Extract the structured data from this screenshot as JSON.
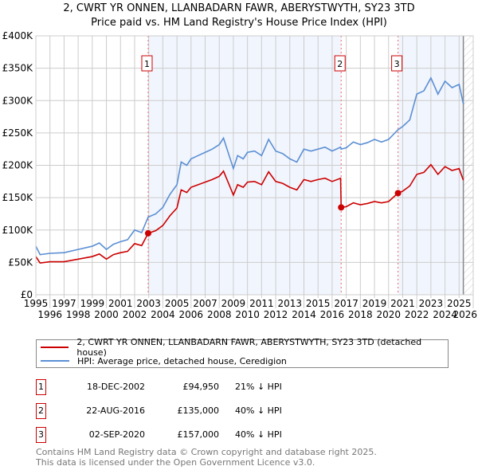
{
  "chart_data": {
    "type": "line",
    "title": "2, CWRT YR ONNEN, LLANBADARN FAWR, ABERYSTWYTH, SY23 3TD",
    "subtitle": "Price paid vs. HM Land Registry's House Price Index (HPI)",
    "xlim": [
      1995,
      2026
    ],
    "ylim": [
      0,
      400000
    ],
    "x_ticks": [
      "1995",
      "1996",
      "1997",
      "1998",
      "1999",
      "2000",
      "2001",
      "2002",
      "2003",
      "2004",
      "2005",
      "2006",
      "2007",
      "2008",
      "2009",
      "2010",
      "2011",
      "2012",
      "2013",
      "2014",
      "2015",
      "2016",
      "2017",
      "2018",
      "2019",
      "2020",
      "2021",
      "2022",
      "2023",
      "2024",
      "2025",
      "2026"
    ],
    "y_ticks": [
      {
        "v": 0,
        "label": "£0"
      },
      {
        "v": 50000,
        "label": "£50K"
      },
      {
        "v": 100000,
        "label": "£100K"
      },
      {
        "v": 150000,
        "label": "£150K"
      },
      {
        "v": 200000,
        "label": "£200K"
      },
      {
        "v": 250000,
        "label": "£250K"
      },
      {
        "v": 300000,
        "label": "£300K"
      },
      {
        "v": 350000,
        "label": "£350K"
      },
      {
        "v": 400000,
        "label": "£400K"
      }
    ],
    "grid": true,
    "x": [
      1995,
      1995.3,
      1996,
      1997,
      1998,
      1999,
      1999.5,
      2000,
      2000.5,
      2001,
      2001.5,
      2002,
      2002.5,
      2002.96,
      2003.5,
      2004,
      2004.5,
      2005,
      2005.3,
      2005.7,
      2006,
      2006.5,
      2007,
      2007.5,
      2008,
      2008.3,
      2008.7,
      2009,
      2009.3,
      2009.7,
      2010,
      2010.5,
      2011,
      2011.5,
      2012,
      2012.5,
      2013,
      2013.5,
      2014,
      2014.5,
      2015,
      2015.5,
      2016,
      2016.6,
      2016.64,
      2017,
      2017.5,
      2018,
      2018.5,
      2019,
      2019.5,
      2020,
      2020.67,
      2021,
      2021.5,
      2022,
      2022.5,
      2023,
      2023.5,
      2024,
      2024.5,
      2025,
      2025.3
    ],
    "series": [
      {
        "name": "2, CWRT YR ONNEN, LLANBADARN FAWR, ABERYSTWYTH, SY23 3TD (detached house)",
        "color": "#cc0000",
        "values": [
          59000,
          49000,
          51000,
          51000,
          55000,
          59000,
          63000,
          55000,
          62000,
          65000,
          67000,
          79000,
          76000,
          94950,
          99000,
          107000,
          122000,
          134000,
          162000,
          158000,
          166000,
          170000,
          174000,
          178000,
          183000,
          191000,
          170000,
          154000,
          170000,
          166000,
          174000,
          175000,
          170000,
          190000,
          175000,
          172000,
          166000,
          162000,
          178000,
          175000,
          178000,
          180000,
          175000,
          180000,
          135000,
          136000,
          142000,
          139000,
          141000,
          144000,
          142000,
          144000,
          157000,
          160000,
          168000,
          186000,
          189000,
          201000,
          186000,
          198000,
          192000,
          195000,
          177000
        ]
      },
      {
        "name": "HPI: Average price, detached house, Ceredigion",
        "color": "#5b8fd4",
        "values": [
          75000,
          62000,
          64000,
          65000,
          70000,
          75000,
          80000,
          70000,
          78000,
          82000,
          85000,
          100000,
          96000,
          120000,
          125000,
          135000,
          155000,
          170000,
          205000,
          200000,
          210000,
          215000,
          220000,
          225000,
          232000,
          242000,
          215000,
          195000,
          215000,
          210000,
          220000,
          222000,
          215000,
          240000,
          222000,
          218000,
          210000,
          205000,
          225000,
          222000,
          225000,
          228000,
          222000,
          228000,
          225000,
          227000,
          236000,
          232000,
          235000,
          240000,
          236000,
          240000,
          255000,
          260000,
          270000,
          310000,
          315000,
          335000,
          310000,
          330000,
          320000,
          325000,
          295000
        ]
      }
    ],
    "sales": [
      {
        "label": "1",
        "date": "18-DEC-2002",
        "x": 2002.96,
        "price_value": 94950,
        "price": "£94,950",
        "hpi": "21% ↓ HPI"
      },
      {
        "label": "2",
        "date": "22-AUG-2016",
        "x": 2016.64,
        "price_value": 135000,
        "price": "£135,000",
        "hpi": "40% ↓ HPI"
      },
      {
        "label": "3",
        "date": "02-SEP-2020",
        "x": 2020.67,
        "price_value": 157000,
        "price": "£157,000",
        "hpi": "40% ↓ HPI"
      }
    ],
    "shaded_ranges": [
      [
        2002.96,
        2016.64
      ],
      [
        2020.67,
        2025.3
      ]
    ],
    "forecast_start": 2025.3,
    "legend_placement": "below"
  },
  "footer": {
    "line1": "Contains HM Land Registry data © Crown copyright and database right 2025.",
    "line2": "This data is licensed under the Open Government Licence v3.0."
  }
}
